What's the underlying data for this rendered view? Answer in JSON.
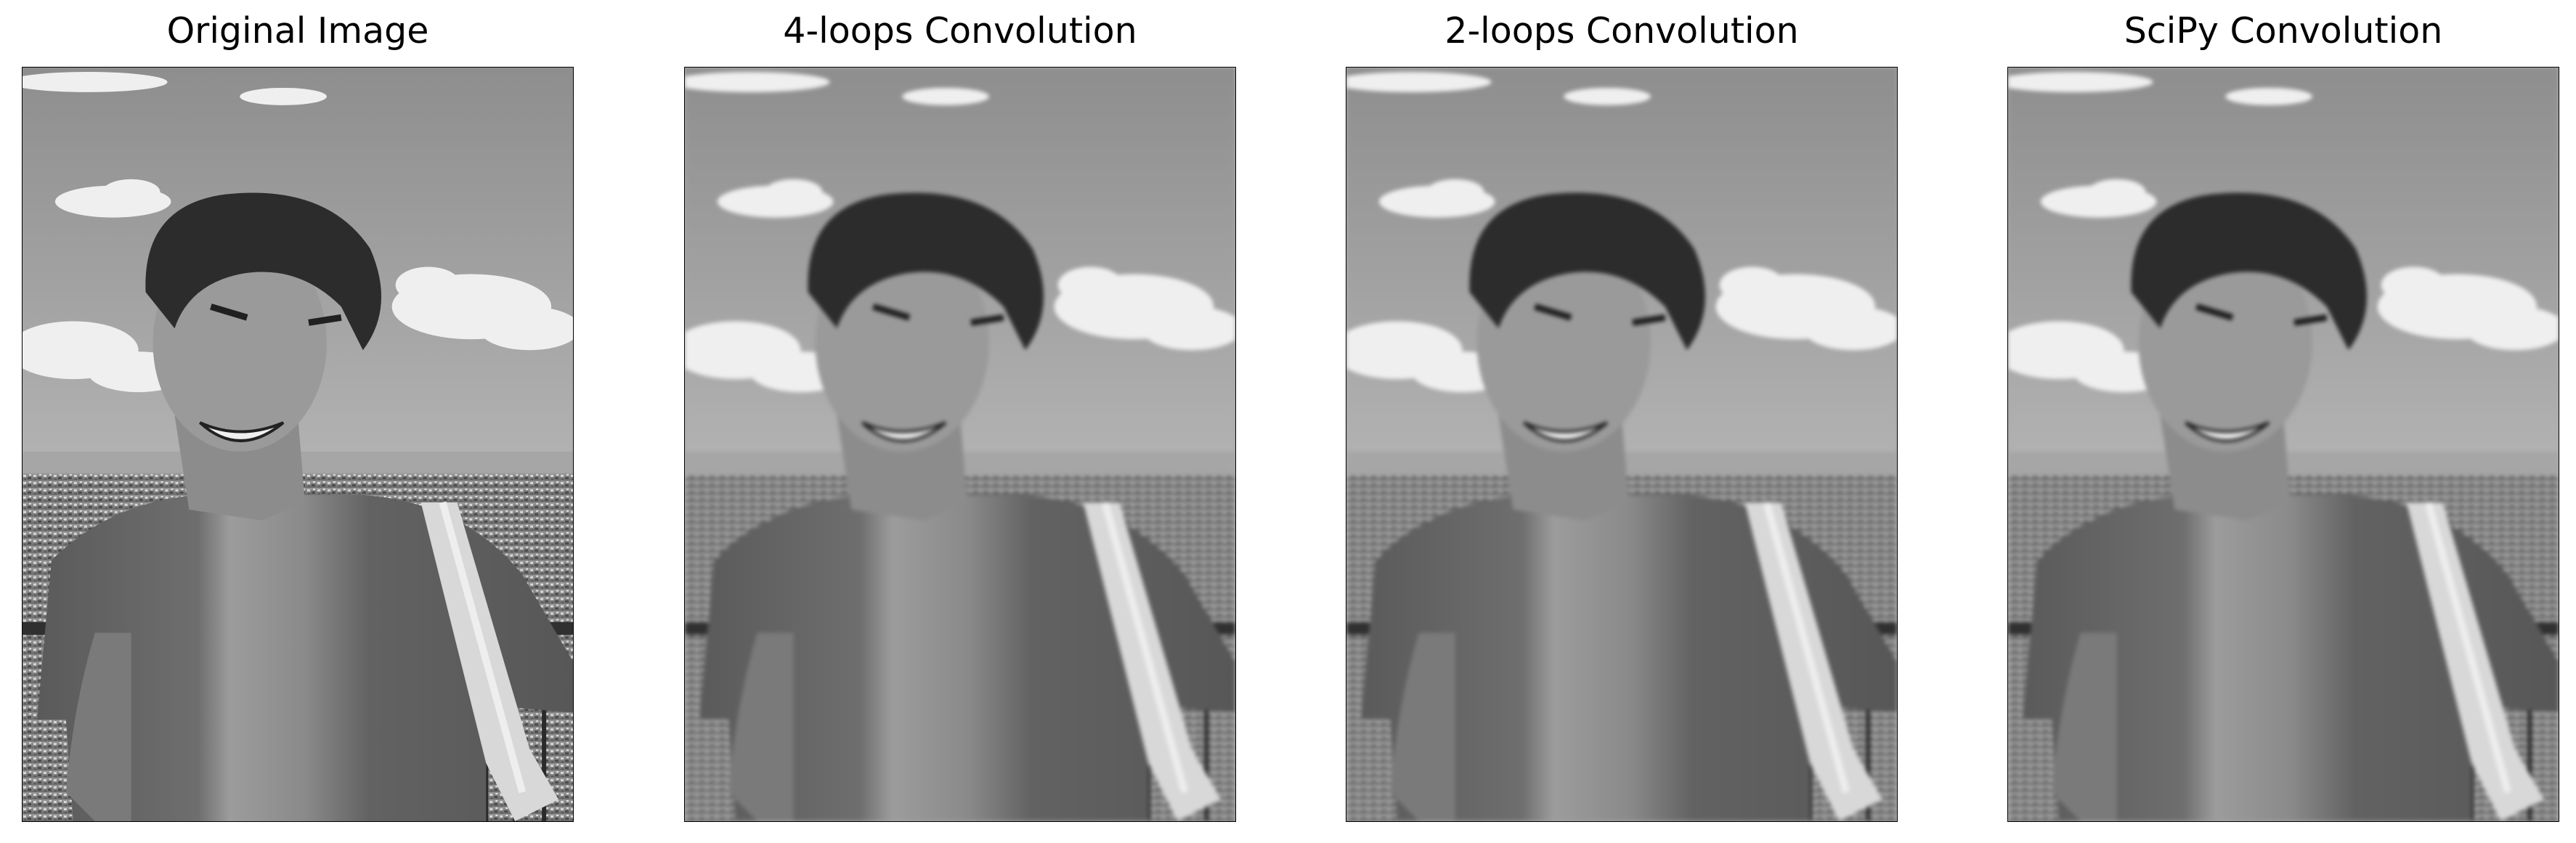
{
  "figure": {
    "panels": [
      {
        "title": "Original Image",
        "image": "grayscale-portrait-smiling-man-overlooking-city",
        "blur": false
      },
      {
        "title": "4-loops Convolution",
        "image": "grayscale-portrait-smiling-man-overlooking-city-blurred",
        "blur": true
      },
      {
        "title": "2-loops Convolution",
        "image": "grayscale-portrait-smiling-man-overlooking-city-blurred",
        "blur": true
      },
      {
        "title": "SciPy Convolution",
        "image": "grayscale-portrait-smiling-man-overlooking-city-blurred",
        "blur": true
      }
    ]
  },
  "colors": {
    "background": "#ffffff",
    "title_text": "#000000",
    "axes_frame": "#000000"
  }
}
